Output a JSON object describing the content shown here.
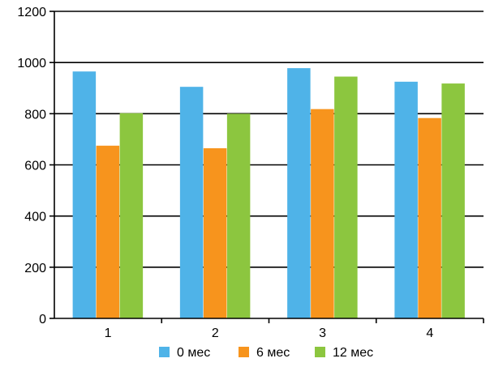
{
  "chart_data": {
    "type": "bar",
    "title": "",
    "xlabel": "",
    "ylabel": "",
    "categories": [
      "1",
      "2",
      "3",
      "4"
    ],
    "ylim": [
      0,
      1200
    ],
    "yticks": [
      0,
      200,
      400,
      600,
      800,
      1000,
      1200
    ],
    "grid": true,
    "legend_position": "bottom",
    "series": [
      {
        "name": "0 мес",
        "color": "#4fb3e8",
        "values": [
          965,
          905,
          978,
          925
        ]
      },
      {
        "name": "6 мес",
        "color": "#f7941d",
        "values": [
          675,
          665,
          818,
          783
        ]
      },
      {
        "name": "12 мес",
        "color": "#8cc63f",
        "values": [
          802,
          800,
          945,
          918
        ]
      }
    ]
  }
}
